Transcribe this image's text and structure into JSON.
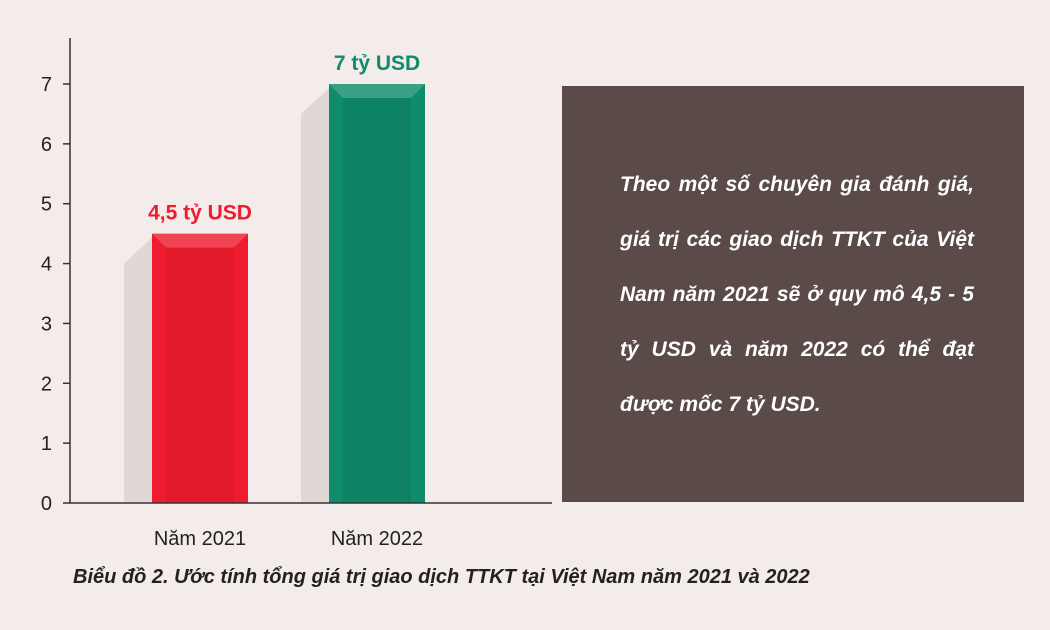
{
  "chart_data": {
    "type": "bar",
    "categories": [
      "Năm 2021",
      "Năm 2022"
    ],
    "values": [
      4.5,
      7
    ],
    "data_labels": [
      "4,5 tỷ USD",
      "7 tỷ USD"
    ],
    "bar_colors": [
      "#ee1c2e",
      "#0f8c6b"
    ],
    "label_colors": [
      "#ee1c2e",
      "#0f8c6b"
    ],
    "yticks": [
      0,
      1,
      2,
      3,
      4,
      5,
      6,
      7
    ],
    "ylim": [
      0,
      7
    ],
    "grid": false,
    "legend": "none"
  },
  "note": {
    "text": "Theo một số chuyên gia đánh giá, giá trị các giao dịch TTKT của Việt Nam năm 2021 sẽ ở quy mô 4,5 - 5 tỷ USD và năm 2022 có thể đạt được mốc 7 tỷ USD."
  },
  "caption": "Biểu đồ 2. Ước tính tổng giá trị giao dịch TTKT tại Việt Nam năm 2021 và 2022"
}
